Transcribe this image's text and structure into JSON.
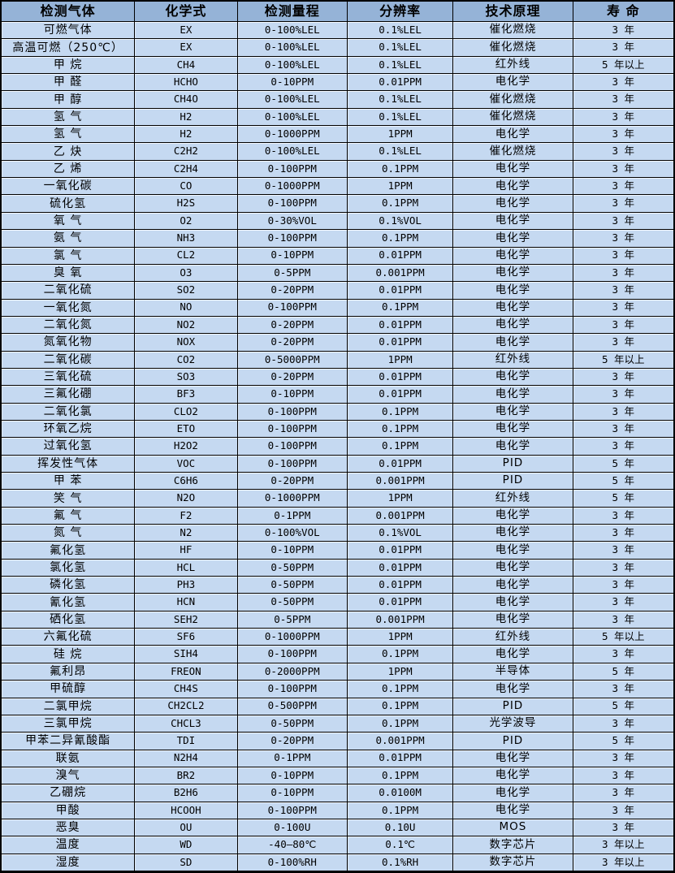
{
  "table": {
    "columns": [
      "检测气体",
      "化学式",
      "检测量程",
      "分辨率",
      "技术原理",
      "寿 命"
    ],
    "rows": [
      [
        "可燃气体",
        "EX",
        "0-100%LEL",
        "0.1%LEL",
        "催化燃烧",
        "3 年"
      ],
      [
        "高温可燃（250℃）",
        "EX",
        "0-100%LEL",
        "0.1%LEL",
        "催化燃烧",
        "3 年"
      ],
      [
        "甲 烷",
        "CH4",
        "0-100%LEL",
        "0.1%LEL",
        "红外线",
        "5 年以上"
      ],
      [
        "甲 醛",
        "HCHO",
        "0-10PPM",
        "0.01PPM",
        "电化学",
        "3 年"
      ],
      [
        "甲 醇",
        "CH4O",
        "0-100%LEL",
        "0.1%LEL",
        "催化燃烧",
        "3 年"
      ],
      [
        "氢 气",
        "H2",
        "0-100%LEL",
        "0.1%LEL",
        "催化燃烧",
        "3 年"
      ],
      [
        "氢 气",
        "H2",
        "0-1000PPM",
        "1PPM",
        "电化学",
        "3 年"
      ],
      [
        "乙 炔",
        "C2H2",
        "0-100%LEL",
        "0.1%LEL",
        "催化燃烧",
        "3 年"
      ],
      [
        "乙 烯",
        "C2H4",
        "0-100PPM",
        "0.1PPM",
        "电化学",
        "3 年"
      ],
      [
        "一氧化碳",
        "CO",
        "0-1000PPM",
        "1PPM",
        "电化学",
        "3 年"
      ],
      [
        "硫化氢",
        "H2S",
        "0-100PPM",
        "0.1PPM",
        "电化学",
        "3 年"
      ],
      [
        "氧 气",
        "O2",
        "0-30%VOL",
        "0.1%VOL",
        "电化学",
        "3 年"
      ],
      [
        "氨 气",
        "NH3",
        "0-100PPM",
        "0.1PPM",
        "电化学",
        "3 年"
      ],
      [
        "氯 气",
        "CL2",
        "0-10PPM",
        "0.01PPM",
        "电化学",
        "3 年"
      ],
      [
        "臭 氧",
        "O3",
        "0-5PPM",
        "0.001PPM",
        "电化学",
        "3 年"
      ],
      [
        "二氧化硫",
        "SO2",
        "0-20PPM",
        "0.01PPM",
        "电化学",
        "3 年"
      ],
      [
        "一氧化氮",
        "NO",
        "0-100PPM",
        "0.1PPM",
        "电化学",
        "3 年"
      ],
      [
        "二氧化氮",
        "NO2",
        "0-20PPM",
        "0.01PPM",
        "电化学",
        "3 年"
      ],
      [
        "氮氧化物",
        "NOX",
        "0-20PPM",
        "0.01PPM",
        "电化学",
        "3 年"
      ],
      [
        "二氧化碳",
        "CO2",
        "0-5000PPM",
        "1PPM",
        "红外线",
        "5 年以上"
      ],
      [
        "三氧化硫",
        "SO3",
        "0-20PPM",
        "0.01PPM",
        "电化学",
        "3 年"
      ],
      [
        "三氟化硼",
        "BF3",
        "0-10PPM",
        "0.01PPM",
        "电化学",
        "3 年"
      ],
      [
        "二氧化氯",
        "CLO2",
        "0-100PPM",
        "0.1PPM",
        "电化学",
        "3 年"
      ],
      [
        "环氧乙烷",
        "ETO",
        "0-100PPM",
        "0.1PPM",
        "电化学",
        "3 年"
      ],
      [
        "过氧化氢",
        "H2O2",
        "0-100PPM",
        "0.1PPM",
        "电化学",
        "3 年"
      ],
      [
        "挥发性气体",
        "VOC",
        "0-100PPM",
        "0.01PPM",
        "PID",
        "5 年"
      ],
      [
        "甲 苯",
        "C6H6",
        "0-20PPM",
        "0.001PPM",
        "PID",
        "5 年"
      ],
      [
        "笑 气",
        "N2O",
        "0-1000PPM",
        "1PPM",
        "红外线",
        "5 年"
      ],
      [
        "氟 气",
        "F2",
        "0-1PPM",
        "0.001PPM",
        "电化学",
        "3 年"
      ],
      [
        "氮 气",
        "N2",
        "0-100%VOL",
        "0.1%VOL",
        "电化学",
        "3 年"
      ],
      [
        "氟化氢",
        "HF",
        "0-10PPM",
        "0.01PPM",
        "电化学",
        "3 年"
      ],
      [
        "氯化氢",
        "HCL",
        "0-50PPM",
        "0.01PPM",
        "电化学",
        "3 年"
      ],
      [
        "磷化氢",
        "PH3",
        "0-50PPM",
        "0.01PPM",
        "电化学",
        "3 年"
      ],
      [
        "氰化氢",
        "HCN",
        "0-50PPM",
        "0.01PPM",
        "电化学",
        "3 年"
      ],
      [
        "硒化氢",
        "SEH2",
        "0-5PPM",
        "0.001PPM",
        "电化学",
        "3 年"
      ],
      [
        "六氟化硫",
        "SF6",
        "0-1000PPM",
        "1PPM",
        "红外线",
        "5 年以上"
      ],
      [
        "硅 烷",
        "SIH4",
        "0-100PPM",
        "0.1PPM",
        "电化学",
        "3 年"
      ],
      [
        "氟利昂",
        "FREON",
        "0-2000PPM",
        "1PPM",
        "半导体",
        "5 年"
      ],
      [
        "甲硫醇",
        "CH4S",
        "0-100PPM",
        "0.1PPM",
        "电化学",
        "3 年"
      ],
      [
        "二氯甲烷",
        "CH2CL2",
        "0-500PPM",
        "0.1PPM",
        "PID",
        "5 年"
      ],
      [
        "三氯甲烷",
        "CHCL3",
        "0-50PPM",
        "0.1PPM",
        "光学波导",
        "3 年"
      ],
      [
        "甲苯二异氰酸酯",
        "TDI",
        "0-20PPM",
        "0.001PPM",
        "PID",
        "5 年"
      ],
      [
        "联氨",
        "N2H4",
        "0-1PPM",
        "0.01PPM",
        "电化学",
        "3 年"
      ],
      [
        "溴气",
        "BR2",
        "0-10PPM",
        "0.1PPM",
        "电化学",
        "3 年"
      ],
      [
        "乙硼烷",
        "B2H6",
        "0-10PPM",
        "0.0100M",
        "电化学",
        "3 年"
      ],
      [
        "甲酸",
        "HCOOH",
        "0-100PPM",
        "0.1PPM",
        "电化学",
        "3 年"
      ],
      [
        "恶臭",
        "OU",
        "0-100U",
        "0.10U",
        "MOS",
        "3 年"
      ],
      [
        "温度",
        "WD",
        "-40—80℃",
        "0.1℃",
        "数字芯片",
        "3 年以上"
      ],
      [
        "湿度",
        "SD",
        "0-100%RH",
        "0.1%RH",
        "数字芯片",
        "3 年以上"
      ]
    ]
  },
  "colors": {
    "header_bg": "#95b3d7",
    "row_bg": "#c5d9f1",
    "border": "#000000",
    "text": "#000000"
  }
}
